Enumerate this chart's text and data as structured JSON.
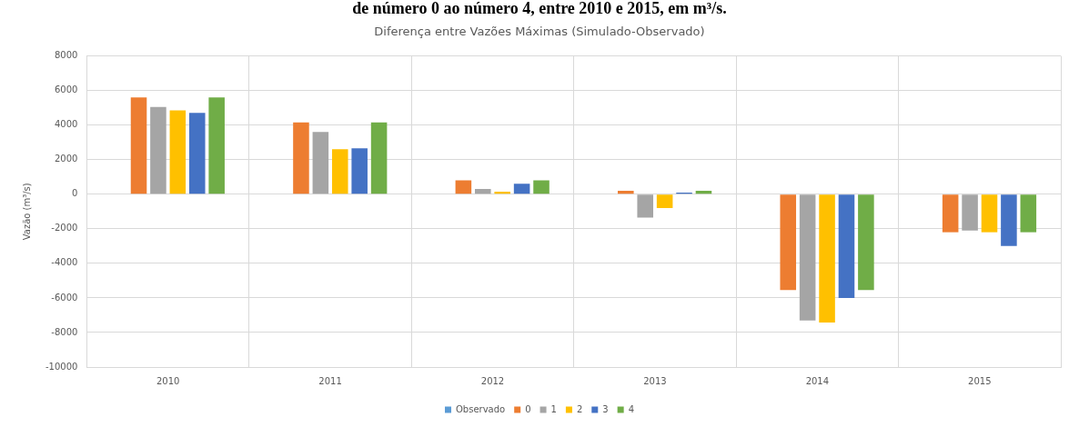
{
  "chart_data": {
    "type": "bar",
    "title": "Diferença entre Vazões Máximas (Simulado-Observado)",
    "ylabel": "Vazão (m³/s)",
    "annotations": [
      "de número 0 ao número 4, entre 2010 e 2015, em m³/s."
    ],
    "categories": [
      "2010",
      "2011",
      "2012",
      "2013",
      "2014",
      "2015"
    ],
    "series": [
      {
        "name": "Observado",
        "color": "#5b9bd5",
        "values": [
          0,
          0,
          0,
          0,
          0,
          0
        ]
      },
      {
        "name": "0",
        "color": "#ed7d31",
        "values": [
          5600,
          4150,
          800,
          200,
          -5550,
          -2200
        ]
      },
      {
        "name": "1",
        "color": "#a5a5a5",
        "values": [
          5050,
          3600,
          300,
          -1350,
          -7300,
          -2100
        ]
      },
      {
        "name": "2",
        "color": "#ffc000",
        "values": [
          4850,
          2600,
          150,
          -800,
          -7430,
          -2200
        ]
      },
      {
        "name": "3",
        "color": "#4472c4",
        "values": [
          4700,
          2650,
          600,
          100,
          -6000,
          -3000
        ]
      },
      {
        "name": "4",
        "color": "#70ad47",
        "values": [
          5600,
          4150,
          800,
          200,
          -5550,
          -2200
        ]
      }
    ],
    "ylim": [
      -10000,
      8000
    ],
    "yticks": [
      -10000,
      -8000,
      -6000,
      -4000,
      -2000,
      0,
      2000,
      4000,
      6000,
      8000
    ],
    "grid": true,
    "legend": "bottom"
  }
}
